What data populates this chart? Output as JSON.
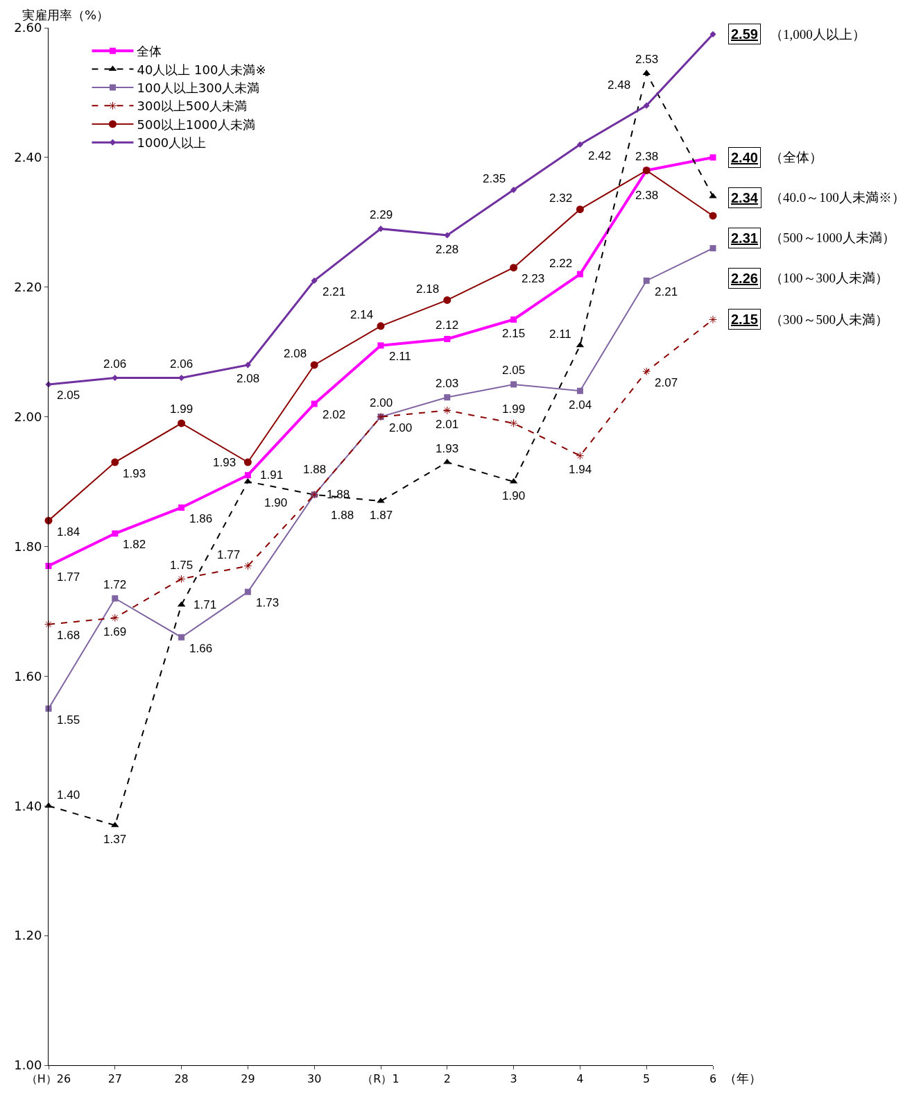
{
  "chart_data": {
    "type": "line",
    "ylabel": "実雇用率（%）",
    "xlabel": "（年）",
    "categories": [
      "（H）26",
      "27",
      "28",
      "29",
      "30",
      "（R）1",
      "2",
      "3",
      "4",
      "5",
      "6"
    ],
    "ylim": [
      1.0,
      2.6
    ],
    "yticks": [
      {
        "value": 1.0,
        "label": "1.00"
      },
      {
        "value": 1.2,
        "label": "1.20"
      },
      {
        "value": 1.4,
        "label": "1.40"
      },
      {
        "value": 1.6,
        "label": "1.60"
      },
      {
        "value": 1.8,
        "label": "1.80"
      },
      {
        "value": 2.0,
        "label": "2.00"
      },
      {
        "value": 2.2,
        "label": "2.20"
      },
      {
        "value": 2.4,
        "label": "2.40"
      },
      {
        "value": 2.6,
        "label": "2.60"
      }
    ],
    "grid": false,
    "legend": "top left",
    "series": [
      {
        "name": "全体",
        "color": "#ff00ff",
        "marker": "square",
        "line_style": "solid",
        "values": [
          1.77,
          1.82,
          1.86,
          1.91,
          2.02,
          2.11,
          2.12,
          2.15,
          2.22,
          2.38,
          2.4
        ],
        "value_labels": [
          "1.77",
          "1.82",
          "1.86",
          "1.91",
          "2.02",
          "2.11",
          "2.12",
          "2.15",
          "2.22",
          "2.38",
          "2.40"
        ]
      },
      {
        "name": "40人以上 100人未満※",
        "color": "#000000",
        "marker": "triangle",
        "line_style": "dashed",
        "values": [
          1.4,
          1.37,
          1.71,
          1.9,
          1.88,
          1.87,
          1.93,
          1.9,
          2.11,
          2.53,
          2.34
        ],
        "value_labels": [
          "1.40",
          "1.37",
          "1.71",
          "1.90",
          "1.88",
          "1.87",
          "1.93",
          "1.90",
          "2.11",
          "2.53",
          "2.34"
        ]
      },
      {
        "name": "100人以上300人未満",
        "color": "#8064a2",
        "marker": "square",
        "line_style": "solid",
        "values": [
          1.55,
          1.72,
          1.66,
          1.73,
          1.88,
          2.0,
          2.03,
          2.05,
          2.04,
          2.21,
          2.26
        ],
        "value_labels": [
          "1.55",
          "1.72",
          "1.66",
          "1.73",
          "1.88",
          "2.00",
          "2.03",
          "2.05",
          "2.04",
          "2.21",
          "2.26"
        ]
      },
      {
        "name": "300以上500人未満",
        "color": "#8b0000",
        "marker": "cross",
        "line_style": "dashed",
        "values": [
          1.68,
          1.69,
          1.75,
          1.77,
          1.88,
          2.0,
          2.01,
          1.99,
          1.94,
          2.07,
          2.15
        ],
        "value_labels": [
          "1.68",
          "1.69",
          "1.75",
          "1.77",
          "1.88",
          "2.00",
          "2.01",
          "1.99",
          "1.94",
          "2.07",
          "2.15"
        ]
      },
      {
        "name": "500以上1000人未満",
        "color": "#8b0000",
        "marker": "circle",
        "line_style": "solid",
        "values": [
          1.84,
          1.93,
          1.99,
          1.93,
          2.08,
          2.14,
          2.18,
          2.23,
          2.32,
          2.38,
          2.31
        ],
        "value_labels": [
          "1.84",
          "1.93",
          "1.99",
          "1.93",
          "2.08",
          "2.14",
          "2.18",
          "2.23",
          "2.32",
          "2.38",
          "2.31"
        ]
      },
      {
        "name": "1000人以上",
        "color": "#7030a0",
        "marker": "diamond",
        "line_style": "solid",
        "values": [
          2.05,
          2.06,
          2.06,
          2.08,
          2.21,
          2.29,
          2.28,
          2.35,
          2.42,
          2.48,
          2.59
        ],
        "value_labels": [
          "2.05",
          "2.06",
          "2.06",
          "2.08",
          "2.21",
          "2.29",
          "2.28",
          "2.35",
          "2.42",
          "2.48",
          "2.59"
        ]
      }
    ],
    "annotations": [
      "（1,000人以上）",
      "（全体）",
      "（40.0～100人未満※）",
      "（500～1000人未満）",
      "（100～300人未満）",
      "（300～500人未満）"
    ]
  }
}
